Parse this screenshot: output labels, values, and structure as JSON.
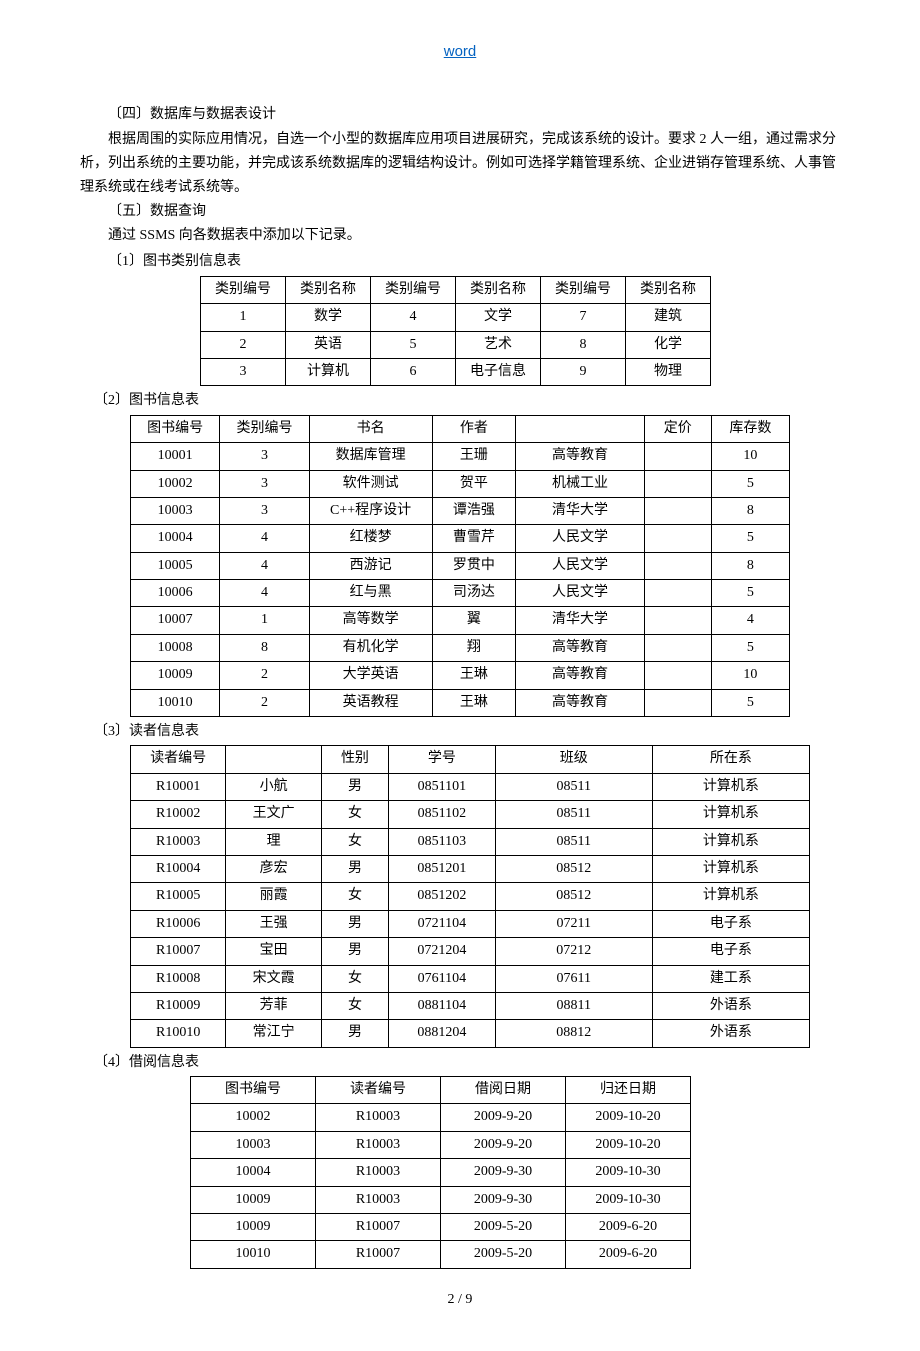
{
  "header": {
    "link_text": "word"
  },
  "sections": {
    "s4_title": "〔四〕数据库与数据表设计",
    "s4_body": "根据周围的实际应用情况，自选一个小型的数据库应用项目进展研究，完成该系统的设计。要求 2 人一组，通过需求分析，列出系统的主要功能，并完成该系统数据库的逻辑结构设计。例如可选择学籍管理系统、企业进销存管理系统、人事管理系统或在线考试系统等。",
    "s5_title": "〔五〕数据查询",
    "s5_body": "通过 SSMS 向各数据表中添加以下记录。"
  },
  "table1": {
    "caption": "〔1〕图书类别信息表",
    "headers": [
      "类别编号",
      "类别名称",
      "类别编号",
      "类别名称",
      "类别编号",
      "类别名称"
    ],
    "rows": [
      [
        "1",
        "数学",
        "4",
        "文学",
        "7",
        "建筑"
      ],
      [
        "2",
        "英语",
        "5",
        "艺术",
        "8",
        "化学"
      ],
      [
        "3",
        "计算机",
        "6",
        "电子信息",
        "9",
        "物理"
      ]
    ]
  },
  "table2": {
    "caption": "〔2〕图书信息表",
    "headers": [
      "图书编号",
      "类别编号",
      "书名",
      "作者",
      "",
      "定价",
      "库存数"
    ],
    "rows": [
      [
        "10001",
        "3",
        "数据库管理",
        "王珊",
        "高等教育",
        "",
        "10"
      ],
      [
        "10002",
        "3",
        "软件测试",
        "贺平",
        "机械工业",
        "",
        "5"
      ],
      [
        "10003",
        "3",
        "C++程序设计",
        "谭浩强",
        "清华大学",
        "",
        "8"
      ],
      [
        "10004",
        "4",
        "红楼梦",
        "曹雪芹",
        "人民文学",
        "",
        "5"
      ],
      [
        "10005",
        "4",
        "西游记",
        "罗贯中",
        "人民文学",
        "",
        "8"
      ],
      [
        "10006",
        "4",
        "红与黑",
        "司汤达",
        "人民文学",
        "",
        "5"
      ],
      [
        "10007",
        "1",
        "高等数学",
        "翼",
        "清华大学",
        "",
        "4"
      ],
      [
        "10008",
        "8",
        "有机化学",
        "翔",
        "高等教育",
        "",
        "5"
      ],
      [
        "10009",
        "2",
        "大学英语",
        "王琳",
        "高等教育",
        "",
        "10"
      ],
      [
        "10010",
        "2",
        "英语教程",
        "王琳",
        "高等教育",
        "",
        "5"
      ]
    ]
  },
  "table3": {
    "caption": "〔3〕读者信息表",
    "headers": [
      "读者编号",
      "",
      "性别",
      "学号",
      "班级",
      "所在系"
    ],
    "rows": [
      [
        "R10001",
        "小航",
        "男",
        "0851101",
        "08511",
        "计算机系"
      ],
      [
        "R10002",
        "王文广",
        "女",
        "0851102",
        "08511",
        "计算机系"
      ],
      [
        "R10003",
        "理",
        "女",
        "0851103",
        "08511",
        "计算机系"
      ],
      [
        "R10004",
        "彦宏",
        "男",
        "0851201",
        "08512",
        "计算机系"
      ],
      [
        "R10005",
        "丽霞",
        "女",
        "0851202",
        "08512",
        "计算机系"
      ],
      [
        "R10006",
        "王强",
        "男",
        "0721104",
        "07211",
        "电子系"
      ],
      [
        "R10007",
        "宝田",
        "男",
        "0721204",
        "07212",
        "电子系"
      ],
      [
        "R10008",
        "宋文霞",
        "女",
        "0761104",
        "07611",
        "建工系"
      ],
      [
        "R10009",
        "芳菲",
        "女",
        "0881104",
        "08811",
        "外语系"
      ],
      [
        "R10010",
        "常江宁",
        "男",
        "0881204",
        "08812",
        "外语系"
      ]
    ]
  },
  "table4": {
    "caption": "〔4〕借阅信息表",
    "headers": [
      "图书编号",
      "读者编号",
      "借阅日期",
      "归还日期"
    ],
    "rows": [
      [
        "10002",
        "R10003",
        "2009-9-20",
        "2009-10-20"
      ],
      [
        "10003",
        "R10003",
        "2009-9-20",
        "2009-10-20"
      ],
      [
        "10004",
        "R10003",
        "2009-9-30",
        "2009-10-30"
      ],
      [
        "10009",
        "R10003",
        "2009-9-30",
        "2009-10-30"
      ],
      [
        "10009",
        "R10007",
        "2009-5-20",
        "2009-6-20"
      ],
      [
        "10010",
        "R10007",
        "2009-5-20",
        "2009-6-20"
      ]
    ]
  },
  "footer": {
    "page": "2 / 9"
  }
}
